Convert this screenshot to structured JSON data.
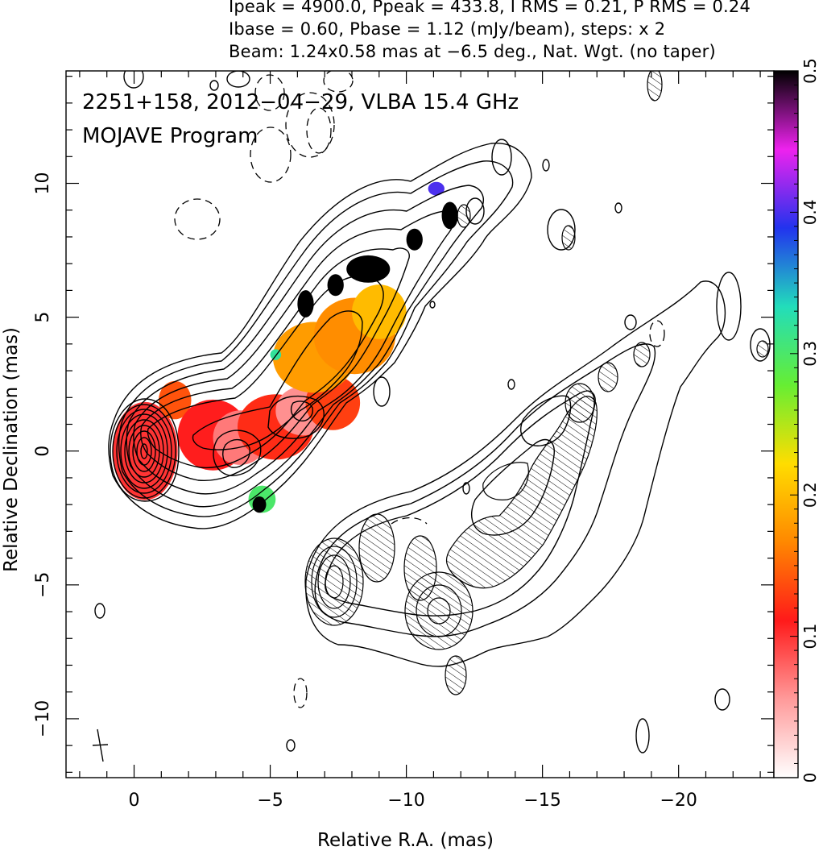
{
  "header": {
    "line1": "Ipeak = 4900.0, Ppeak = 433.8, I RMS = 0.21, P RMS = 0.24",
    "line2": "Ibase = 0.60, Pbase = 1.12 (mJy/beam), steps: x 2",
    "line3": "Beam: 1.24x0.58 mas at −6.5 deg., Nat. Wgt. (no taper)"
  },
  "plot_label": {
    "line1": "2251+158, 2012−04−29, VLBA 15.4 GHz",
    "line2": "MOJAVE Program"
  },
  "colors": {
    "colorbar_stops": [
      "#ffffff",
      "#ff9a9a",
      "#ff1a1a",
      "#ff8800",
      "#ffdd00",
      "#66ee33",
      "#22ddbb",
      "#2233ee",
      "#ee22ee",
      "#000000"
    ],
    "contour": "#000000"
  },
  "chart_data": {
    "type": "heatmap",
    "xlabel": "Relative R.A. (mas)",
    "ylabel": "Relative Declination (mas)",
    "xlim": [
      2.5,
      -23.5
    ],
    "ylim": [
      -12.2,
      14.2
    ],
    "xticks": [
      0,
      -5,
      -10,
      -15,
      -20
    ],
    "xtick_labels": [
      "0",
      "−5",
      "−10",
      "−15",
      "−20"
    ],
    "yticks": [
      -10,
      -5,
      0,
      5,
      10
    ],
    "ytick_labels": [
      "−10",
      "−5",
      "0",
      "5",
      "10"
    ],
    "colorbar": {
      "range": [
        0,
        0.5
      ],
      "ticks": [
        0,
        0.1,
        0.2,
        0.3,
        0.4,
        0.5
      ],
      "tick_labels": [
        "0",
        "0.1",
        "0.2",
        "0.3",
        "0.4",
        "0.5"
      ]
    },
    "beam": {
      "major": 1.24,
      "minor": 0.58,
      "pa": -6.5
    },
    "core": {
      "ra": -0.3,
      "dec": 0.2
    },
    "polarization_blobs": [
      {
        "ra": -0.4,
        "dec": 0.0,
        "level": 0.1,
        "a": 1.2,
        "b": 1.8
      },
      {
        "ra": -1.5,
        "dec": 1.9,
        "level": 0.14,
        "a": 0.6,
        "b": 0.7
      },
      {
        "ra": -2.9,
        "dec": 0.6,
        "level": 0.11,
        "a": 1.3,
        "b": 1.3
      },
      {
        "ra": -3.9,
        "dec": 0.5,
        "level": 0.07,
        "a": 1.0,
        "b": 1.0
      },
      {
        "ra": -5.2,
        "dec": 0.9,
        "level": 0.12,
        "a": 1.4,
        "b": 1.2
      },
      {
        "ra": -6.2,
        "dec": 1.5,
        "level": 0.06,
        "a": 1.0,
        "b": 0.9
      },
      {
        "ra": -7.3,
        "dec": 1.8,
        "level": 0.13,
        "a": 1.0,
        "b": 1.0
      },
      {
        "ra": -6.6,
        "dec": 3.5,
        "level": 0.18,
        "a": 1.5,
        "b": 1.3
      },
      {
        "ra": -8.1,
        "dec": 4.3,
        "level": 0.17,
        "a": 1.5,
        "b": 1.4
      },
      {
        "ra": -9.0,
        "dec": 5.2,
        "level": 0.2,
        "a": 1.0,
        "b": 1.0
      },
      {
        "ra": -4.7,
        "dec": -1.8,
        "level": 0.3,
        "a": 0.5,
        "b": 0.5
      },
      {
        "ra": -4.6,
        "dec": -2.0,
        "level": 0.5,
        "a": 0.25,
        "b": 0.3
      },
      {
        "ra": -6.3,
        "dec": 5.5,
        "level": 0.5,
        "a": 0.3,
        "b": 0.5
      },
      {
        "ra": -7.4,
        "dec": 6.2,
        "level": 0.5,
        "a": 0.3,
        "b": 0.4
      },
      {
        "ra": -8.6,
        "dec": 6.8,
        "level": 0.5,
        "a": 0.8,
        "b": 0.5
      },
      {
        "ra": -10.3,
        "dec": 7.9,
        "level": 0.5,
        "a": 0.3,
        "b": 0.4
      },
      {
        "ra": -11.6,
        "dec": 8.8,
        "level": 0.5,
        "a": 0.3,
        "b": 0.5
      },
      {
        "ra": -11.1,
        "dec": 9.8,
        "level": 0.4,
        "a": 0.3,
        "b": 0.25
      },
      {
        "ra": -5.2,
        "dec": 3.6,
        "level": 0.32,
        "a": 0.2,
        "b": 0.2
      }
    ],
    "displaced_image_core": {
      "ra": -7.5,
      "dec": -4.8
    },
    "displaced_image_polarization_peaks": [
      {
        "ra": -10.2,
        "dec": -4.8
      },
      {
        "ra": -11.1,
        "dec": -5.8
      },
      {
        "ra": -14.0,
        "dec": -2.0
      },
      {
        "ra": -15.8,
        "dec": -0.5
      }
    ]
  }
}
